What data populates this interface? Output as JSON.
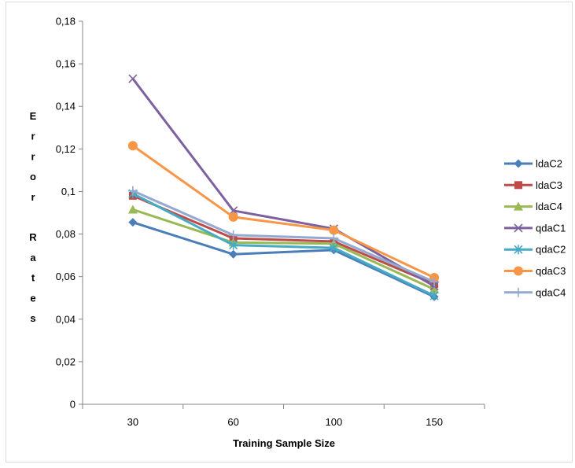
{
  "chart_data": {
    "type": "line",
    "title": "",
    "xlabel": "Training Sample Size",
    "ylabel": "Error Rates",
    "categories": [
      "30",
      "60",
      "100",
      "150"
    ],
    "ylim": [
      0,
      0.18
    ],
    "yticks": [
      0,
      0.02,
      0.04,
      0.06,
      0.08,
      0.1,
      0.12,
      0.14,
      0.16,
      0.18
    ],
    "ytick_labels": [
      "0",
      "0,02",
      "0,04",
      "0,06",
      "0,08",
      "0,1",
      "0,12",
      "0,14",
      "0,16",
      "0,18"
    ],
    "grid": false,
    "legend": "right",
    "series": [
      {
        "name": "ldaC2",
        "color": "#4a7ebb",
        "marker": "diamond",
        "values": [
          0.0855,
          0.0705,
          0.0725,
          0.0505
        ]
      },
      {
        "name": "ldaC3",
        "color": "#be4b48",
        "marker": "square",
        "values": [
          0.098,
          0.078,
          0.0765,
          0.0565
        ]
      },
      {
        "name": "ldaC4",
        "color": "#98b954",
        "marker": "triangle",
        "values": [
          0.0915,
          0.076,
          0.0755,
          0.054
        ]
      },
      {
        "name": "qdaC1",
        "color": "#7d60a0",
        "marker": "x",
        "values": [
          0.153,
          0.091,
          0.0825,
          0.0555
        ]
      },
      {
        "name": "qdaC2",
        "color": "#46aac5",
        "marker": "star",
        "values": [
          0.099,
          0.0748,
          0.0735,
          0.051
        ]
      },
      {
        "name": "qdaC3",
        "color": "#f79646",
        "marker": "circle",
        "values": [
          0.1215,
          0.088,
          0.0818,
          0.0595
        ]
      },
      {
        "name": "qdaC4",
        "color": "#93a9d0",
        "marker": "plus",
        "values": [
          0.1003,
          0.0795,
          0.078,
          0.0575
        ]
      }
    ]
  }
}
